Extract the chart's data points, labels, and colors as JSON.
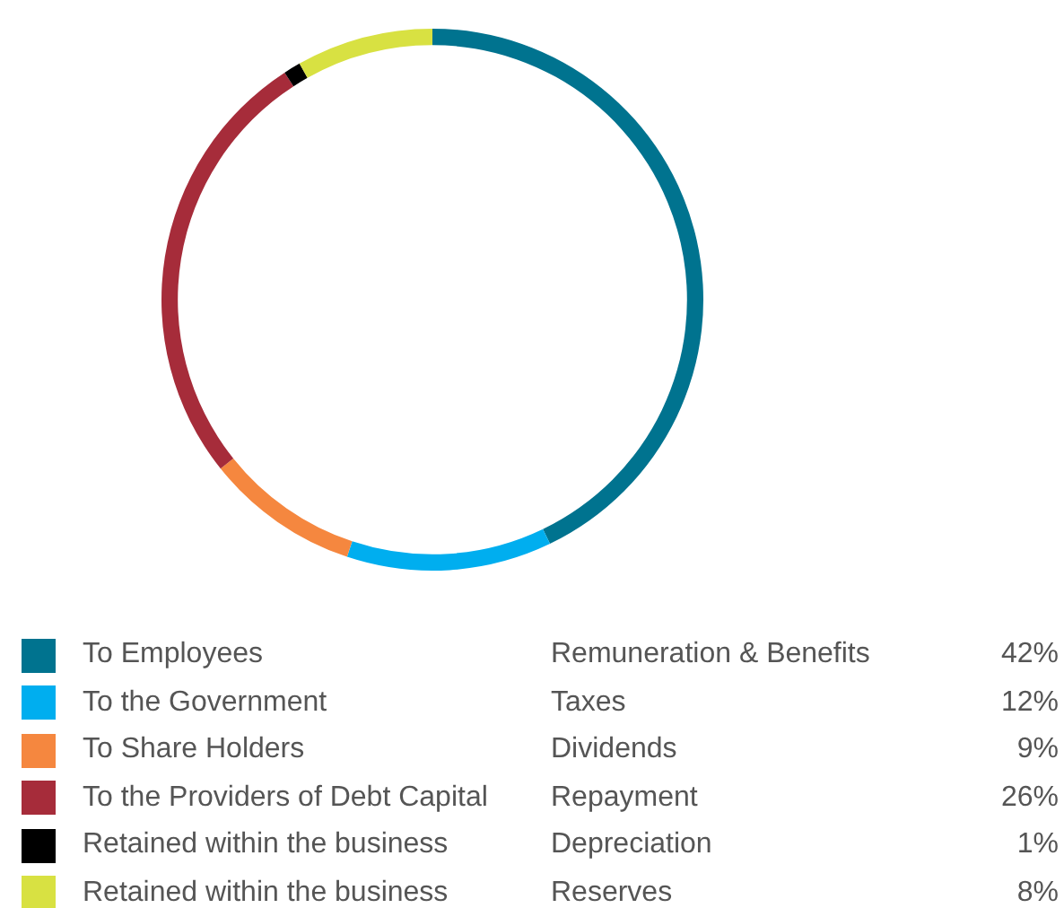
{
  "chart_data": {
    "type": "donut",
    "categories": [
      "To Employees",
      "To the Government",
      "To Share Holders",
      "To the Providers of Debt Capital",
      "Retained within the business",
      "Retained within the business"
    ],
    "values": [
      42,
      12,
      9,
      26,
      1,
      8
    ],
    "colors": [
      "#00738f",
      "#00aeef",
      "#f5873f",
      "#a62c3a",
      "#000000",
      "#d8e142"
    ],
    "value_labels": [
      "42%",
      "12%",
      "9%",
      "26%",
      "1%",
      "8%"
    ],
    "annotations": [
      "Remuneration & Benefits",
      "Taxes",
      "Dividends",
      "Repayment",
      "Depreciation",
      "Reserves"
    ],
    "legend": "bottom"
  }
}
